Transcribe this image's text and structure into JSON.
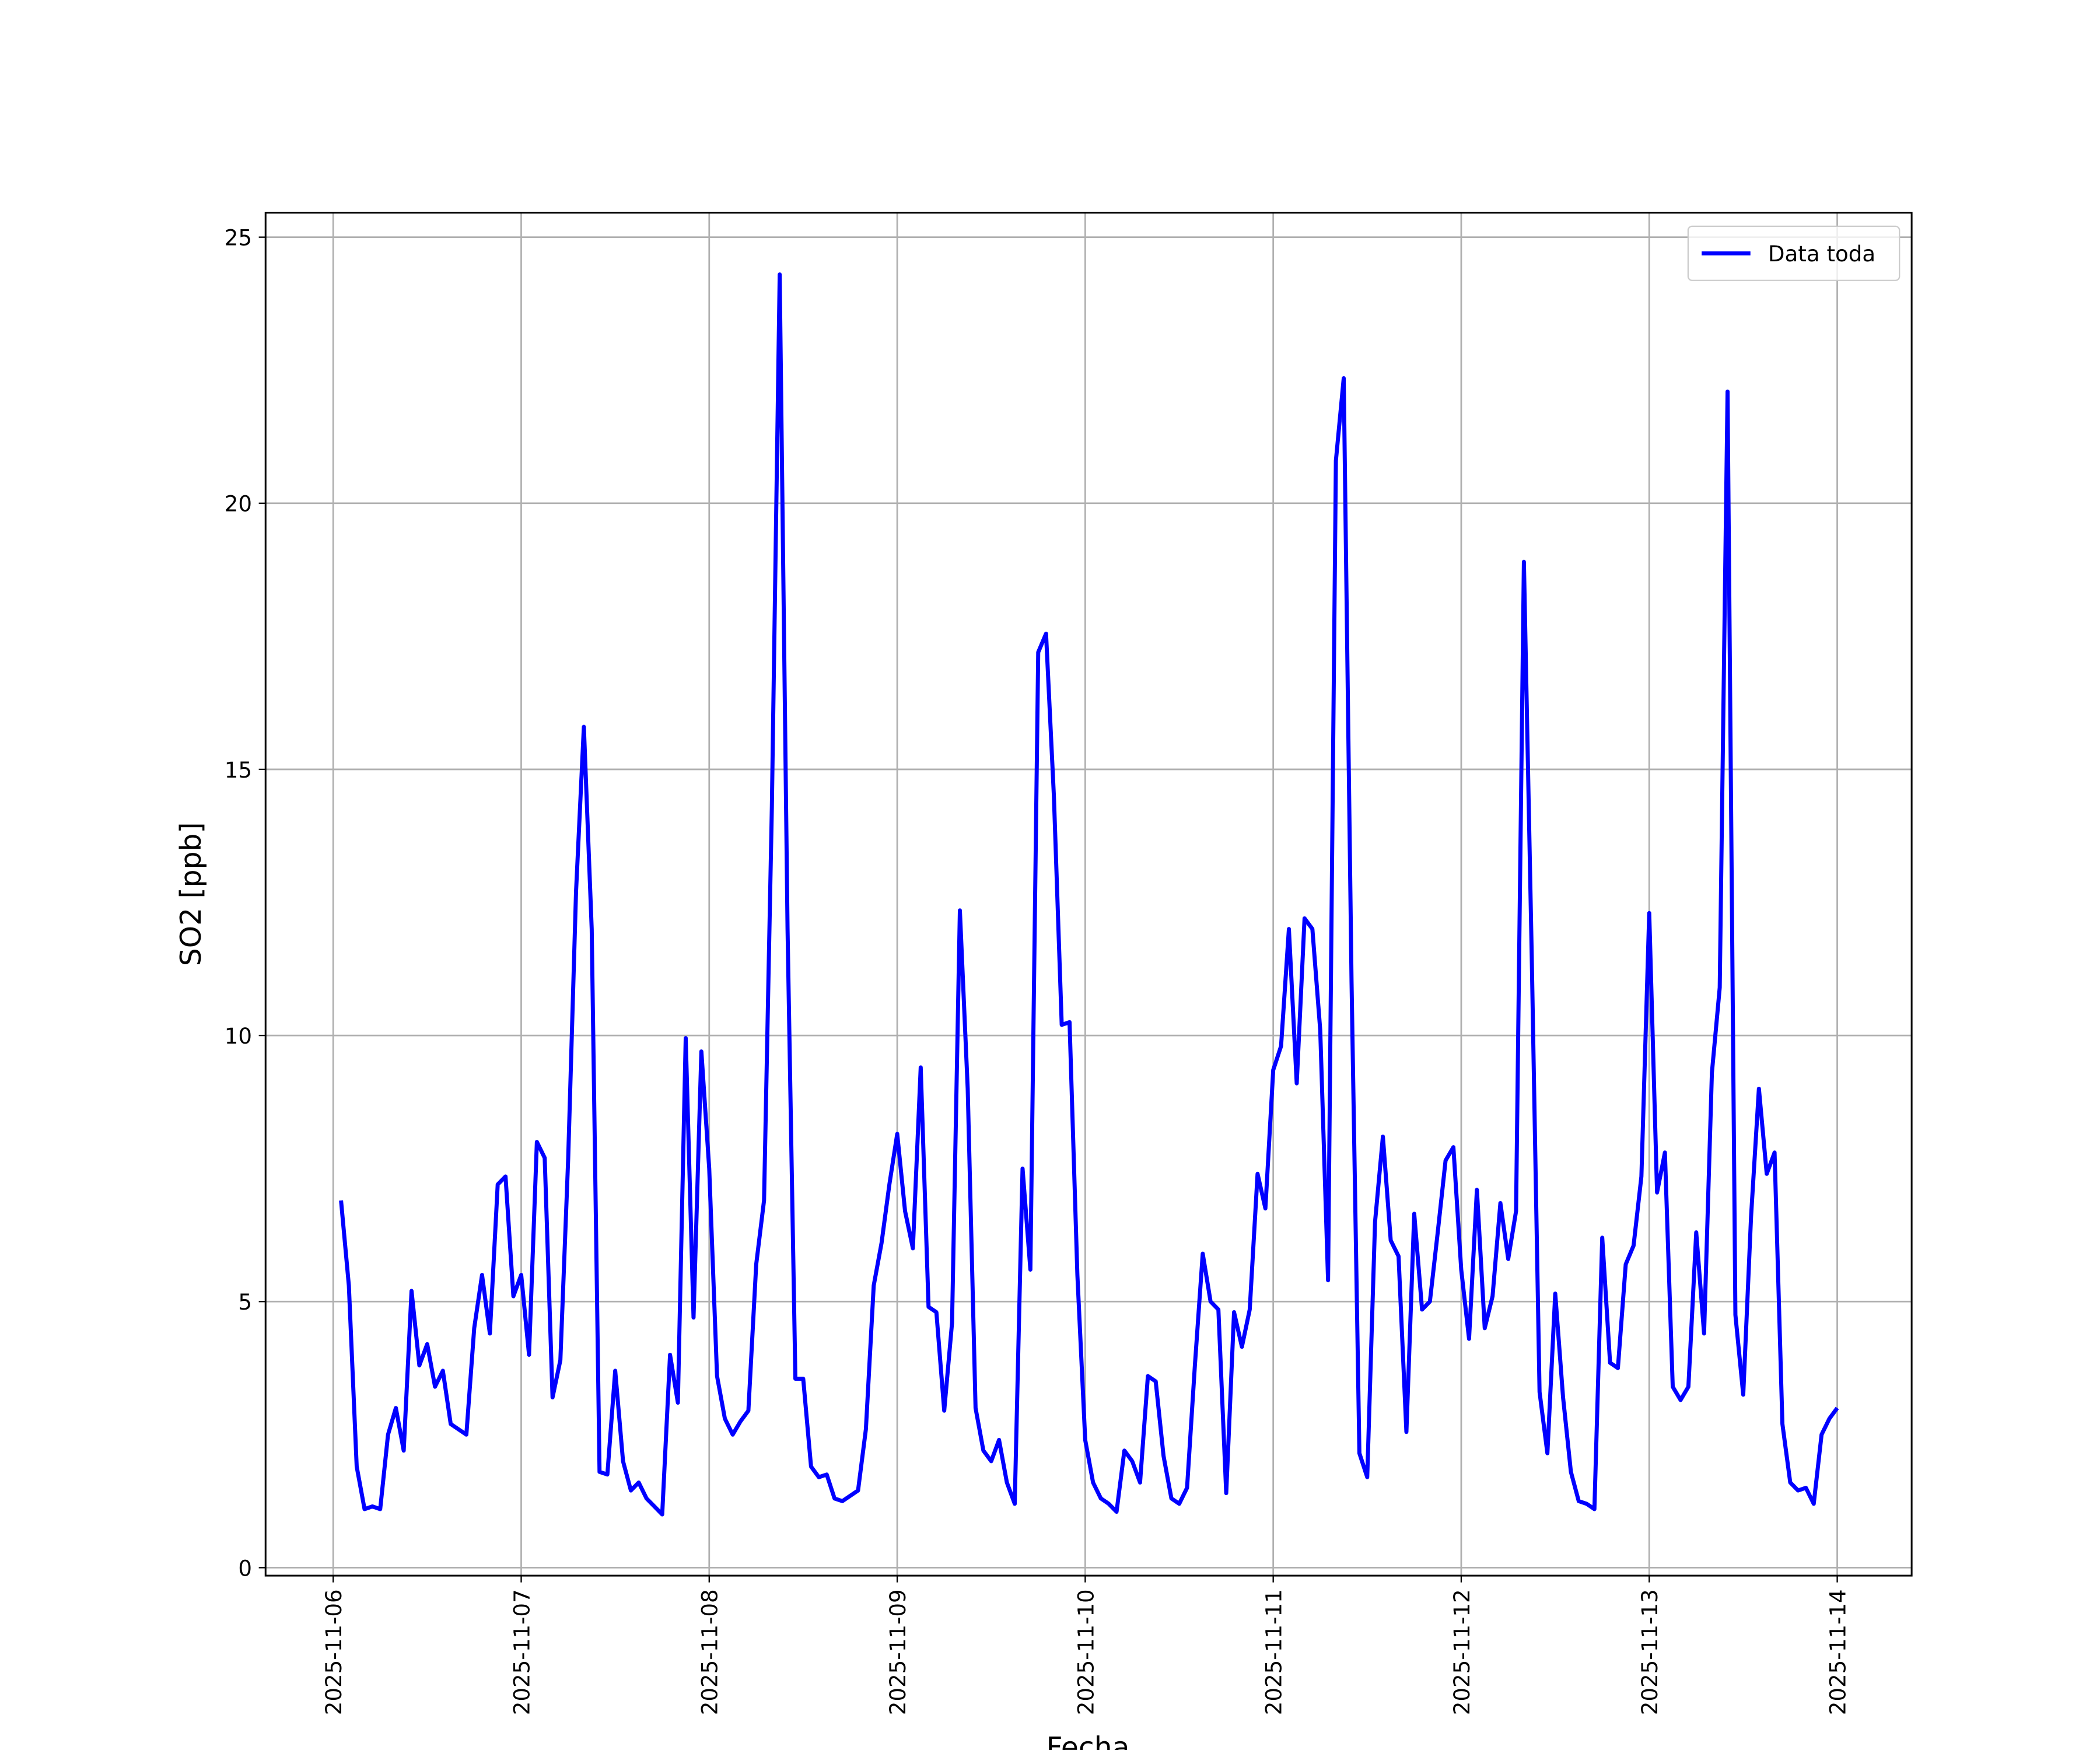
{
  "chart_data": {
    "type": "line",
    "xlabel": "Fecha",
    "ylabel": "SO2 [ppb]",
    "legend": "upper right",
    "grid": true,
    "xlim": [
      "2025-11-05 15:22",
      "2025-11-14 09:30"
    ],
    "ylim": [
      -0.15,
      25.46
    ],
    "xticks": [
      "2025-11-06",
      "2025-11-07",
      "2025-11-08",
      "2025-11-09",
      "2025-11-10",
      "2025-11-11",
      "2025-11-12",
      "2025-11-13",
      "2025-11-14"
    ],
    "yticks": [
      0,
      5,
      10,
      15,
      20,
      25
    ],
    "x": [
      "2025-11-06 01:00",
      "2025-11-06 02:00",
      "2025-11-06 03:00",
      "2025-11-06 04:00",
      "2025-11-06 05:00",
      "2025-11-06 06:00",
      "2025-11-06 07:00",
      "2025-11-06 08:00",
      "2025-11-06 09:00",
      "2025-11-06 10:00",
      "2025-11-06 11:00",
      "2025-11-06 12:00",
      "2025-11-06 13:00",
      "2025-11-06 14:00",
      "2025-11-06 15:00",
      "2025-11-06 16:00",
      "2025-11-06 17:00",
      "2025-11-06 18:00",
      "2025-11-06 19:00",
      "2025-11-06 20:00",
      "2025-11-06 21:00",
      "2025-11-06 22:00",
      "2025-11-06 23:00",
      "2025-11-07 00:00",
      "2025-11-07 01:00",
      "2025-11-07 02:00",
      "2025-11-07 03:00",
      "2025-11-07 04:00",
      "2025-11-07 05:00",
      "2025-11-07 06:00",
      "2025-11-07 07:00",
      "2025-11-07 08:00",
      "2025-11-07 09:00",
      "2025-11-07 10:00",
      "2025-11-07 11:00",
      "2025-11-07 12:00",
      "2025-11-07 13:00",
      "2025-11-07 14:00",
      "2025-11-07 15:00",
      "2025-11-07 16:00",
      "2025-11-07 17:00",
      "2025-11-07 18:00",
      "2025-11-07 19:00",
      "2025-11-07 20:00",
      "2025-11-07 21:00",
      "2025-11-07 22:00",
      "2025-11-07 23:00",
      "2025-11-08 00:00",
      "2025-11-08 01:00",
      "2025-11-08 02:00",
      "2025-11-08 03:00",
      "2025-11-08 04:00",
      "2025-11-08 05:00",
      "2025-11-08 06:00",
      "2025-11-08 07:00",
      "2025-11-08 08:00",
      "2025-11-08 09:00",
      "2025-11-08 10:00",
      "2025-11-08 11:00",
      "2025-11-08 12:00",
      "2025-11-08 13:00",
      "2025-11-08 14:00",
      "2025-11-08 15:00",
      "2025-11-08 16:00",
      "2025-11-08 17:00",
      "2025-11-08 18:00",
      "2025-11-08 19:00",
      "2025-11-08 20:00",
      "2025-11-08 21:00",
      "2025-11-08 22:00",
      "2025-11-08 23:00",
      "2025-11-09 00:00",
      "2025-11-09 01:00",
      "2025-11-09 02:00",
      "2025-11-09 03:00",
      "2025-11-09 04:00",
      "2025-11-09 05:00",
      "2025-11-09 06:00",
      "2025-11-09 07:00",
      "2025-11-09 08:00",
      "2025-11-09 09:00",
      "2025-11-09 10:00",
      "2025-11-09 11:00",
      "2025-11-09 12:00",
      "2025-11-09 13:00",
      "2025-11-09 14:00",
      "2025-11-09 15:00",
      "2025-11-09 16:00",
      "2025-11-09 17:00",
      "2025-11-09 18:00",
      "2025-11-09 19:00",
      "2025-11-09 20:00",
      "2025-11-09 21:00",
      "2025-11-09 22:00",
      "2025-11-09 23:00",
      "2025-11-10 00:00",
      "2025-11-10 01:00",
      "2025-11-10 02:00",
      "2025-11-10 03:00",
      "2025-11-10 04:00",
      "2025-11-10 05:00",
      "2025-11-10 06:00",
      "2025-11-10 07:00",
      "2025-11-10 08:00",
      "2025-11-10 09:00",
      "2025-11-10 10:00",
      "2025-11-10 11:00",
      "2025-11-10 12:00",
      "2025-11-10 13:00",
      "2025-11-10 14:00",
      "2025-11-10 15:00",
      "2025-11-10 16:00",
      "2025-11-10 17:00",
      "2025-11-10 18:00",
      "2025-11-10 19:00",
      "2025-11-10 20:00",
      "2025-11-10 21:00",
      "2025-11-10 22:00",
      "2025-11-10 23:00",
      "2025-11-11 00:00",
      "2025-11-11 01:00",
      "2025-11-11 02:00",
      "2025-11-11 03:00",
      "2025-11-11 04:00",
      "2025-11-11 05:00",
      "2025-11-11 06:00",
      "2025-11-11 07:00",
      "2025-11-11 08:00",
      "2025-11-11 09:00",
      "2025-11-11 10:00",
      "2025-11-11 11:00",
      "2025-11-11 12:00",
      "2025-11-11 13:00",
      "2025-11-11 14:00",
      "2025-11-11 15:00",
      "2025-11-11 16:00",
      "2025-11-11 17:00",
      "2025-11-11 18:00",
      "2025-11-11 19:00",
      "2025-11-11 20:00",
      "2025-11-11 21:00",
      "2025-11-11 22:00",
      "2025-11-11 23:00",
      "2025-11-12 00:00",
      "2025-11-12 01:00",
      "2025-11-12 02:00",
      "2025-11-12 03:00",
      "2025-11-12 04:00",
      "2025-11-12 05:00",
      "2025-11-12 06:00",
      "2025-11-12 07:00",
      "2025-11-12 08:00",
      "2025-11-12 09:00",
      "2025-11-12 10:00",
      "2025-11-12 11:00",
      "2025-11-12 12:00",
      "2025-11-12 13:00",
      "2025-11-12 14:00",
      "2025-11-12 15:00",
      "2025-11-12 16:00",
      "2025-11-12 17:00",
      "2025-11-12 18:00",
      "2025-11-12 19:00",
      "2025-11-12 20:00",
      "2025-11-12 21:00",
      "2025-11-12 22:00",
      "2025-11-12 23:00",
      "2025-11-13 00:00",
      "2025-11-13 01:00",
      "2025-11-13 02:00",
      "2025-11-13 03:00",
      "2025-11-13 04:00",
      "2025-11-13 05:00",
      "2025-11-13 06:00",
      "2025-11-13 07:00",
      "2025-11-13 08:00",
      "2025-11-13 09:00",
      "2025-11-13 10:00",
      "2025-11-13 11:00",
      "2025-11-13 12:00",
      "2025-11-13 13:00",
      "2025-11-13 14:00",
      "2025-11-13 15:00",
      "2025-11-13 16:00",
      "2025-11-13 17:00",
      "2025-11-13 18:00",
      "2025-11-13 19:00",
      "2025-11-13 20:00",
      "2025-11-13 21:00",
      "2025-11-13 22:00",
      "2025-11-13 23:00",
      "2025-11-14 00:00"
    ],
    "series": [
      {
        "name": "Data toda",
        "color": "#0000ff",
        "values": [
          6.9,
          5.3,
          1.9,
          1.1,
          1.15,
          1.1,
          2.5,
          3.0,
          2.2,
          5.2,
          3.8,
          4.2,
          3.4,
          3.7,
          2.7,
          2.6,
          2.5,
          4.5,
          5.5,
          4.4,
          7.2,
          7.35,
          5.1,
          5.5,
          4.0,
          8.0,
          7.7,
          3.2,
          3.9,
          7.7,
          12.7,
          15.8,
          12.0,
          1.8,
          1.75,
          3.7,
          2.0,
          1.45,
          1.6,
          1.3,
          1.15,
          1.0,
          4.0,
          3.1,
          9.95,
          4.7,
          9.7,
          7.5,
          3.6,
          2.8,
          2.5,
          2.75,
          2.95,
          5.7,
          6.9,
          14.3,
          24.3,
          12.0,
          3.55,
          3.55,
          1.9,
          1.7,
          1.75,
          1.3,
          1.25,
          1.35,
          1.45,
          2.6,
          5.3,
          6.1,
          7.2,
          8.15,
          6.7,
          6.0,
          9.4,
          4.9,
          4.8,
          2.95,
          4.6,
          12.35,
          9.0,
          3.0,
          2.2,
          2.0,
          2.4,
          1.6,
          1.2,
          7.5,
          5.6,
          17.2,
          17.55,
          14.5,
          10.2,
          10.25,
          5.5,
          2.4,
          1.6,
          1.3,
          1.2,
          1.05,
          2.2,
          2.0,
          1.6,
          3.6,
          3.5,
          2.1,
          1.3,
          1.2,
          1.5,
          3.8,
          5.9,
          5.0,
          4.85,
          1.4,
          4.8,
          4.15,
          4.85,
          7.4,
          6.75,
          9.35,
          9.8,
          12.0,
          9.1,
          12.2,
          12.0,
          10.1,
          5.4,
          20.8,
          22.35,
          11.0,
          2.15,
          1.7,
          6.5,
          8.1,
          6.15,
          5.85,
          2.55,
          6.65,
          4.85,
          5.0,
          6.3,
          7.65,
          7.9,
          5.6,
          4.3,
          7.1,
          4.5,
          5.1,
          6.85,
          5.8,
          6.7,
          18.9,
          11.5,
          3.3,
          2.15,
          5.15,
          3.2,
          1.8,
          1.25,
          1.2,
          1.1,
          6.2,
          3.85,
          3.75,
          5.7,
          6.05,
          7.35,
          12.3,
          7.05,
          7.8,
          3.4,
          3.15,
          3.4,
          6.3,
          4.4,
          9.3,
          10.9,
          22.1,
          4.75,
          3.25,
          6.6,
          9.0,
          7.4,
          7.8,
          2.7,
          1.6,
          1.45,
          1.5,
          1.2,
          2.5,
          2.8,
          3.0
        ]
      }
    ]
  }
}
